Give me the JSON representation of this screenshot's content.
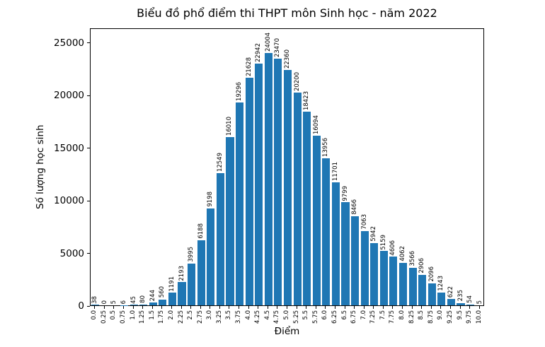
{
  "chart_data": {
    "type": "bar",
    "title": "Biểu đồ phổ điểm thi THPT môn Sinh học - năm 2022",
    "xlabel": "Điểm",
    "ylabel": "Số lượng học sinh",
    "categories": [
      "0.0",
      "0.25",
      "0.5",
      "0.75",
      "1.0",
      "1.25",
      "1.5",
      "1.75",
      "2.0",
      "2.25",
      "2.5",
      "2.75",
      "3.0",
      "3.25",
      "3.5",
      "3.75",
      "4.0",
      "4.25",
      "4.5",
      "4.75",
      "5.0",
      "5.25",
      "5.5",
      "5.75",
      "6.0",
      "6.25",
      "6.5",
      "6.75",
      "7.0",
      "7.25",
      "7.5",
      "7.75",
      "8.0",
      "8.25",
      "8.5",
      "8.75",
      "9.0",
      "9.25",
      "9.5",
      "9.75",
      "10.0"
    ],
    "values": [
      38,
      0,
      5,
      6,
      45,
      80,
      244,
      560,
      1191,
      2193,
      3995,
      6188,
      9198,
      12549,
      16010,
      19296,
      21628,
      22942,
      24004,
      23470,
      22360,
      20200,
      18423,
      16094,
      13956,
      11701,
      9799,
      8466,
      7063,
      5942,
      5159,
      4606,
      4062,
      3566,
      2906,
      2096,
      1243,
      622,
      235,
      54,
      5
    ],
    "yticks": [
      0,
      5000,
      10000,
      15000,
      20000,
      25000
    ],
    "ylim": [
      0,
      26400
    ],
    "bar_color": "#1f77b4",
    "axis_color": "#000000",
    "grid": false,
    "legend_position": "none",
    "value_label_rotation": 90,
    "xtick_rotation": 90
  }
}
